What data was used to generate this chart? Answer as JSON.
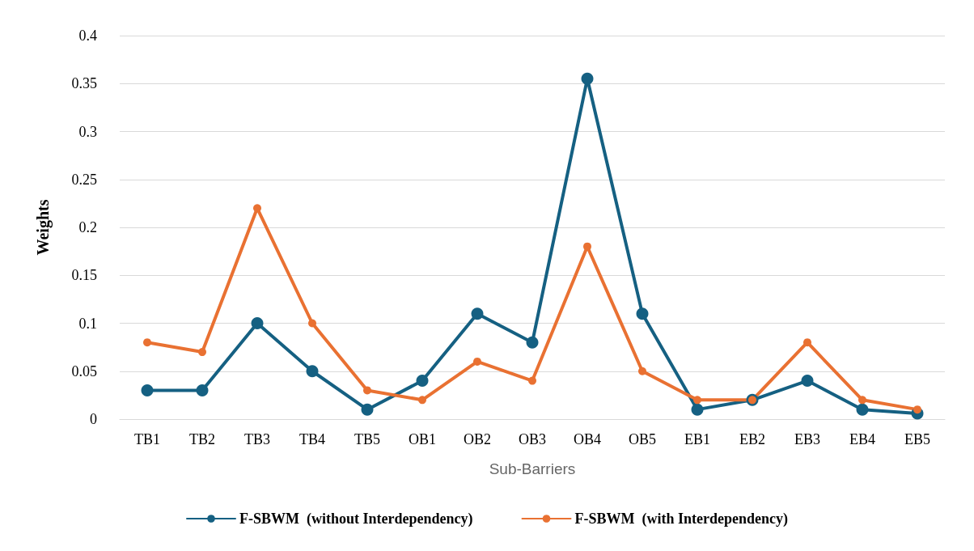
{
  "chart_data": {
    "type": "line",
    "xlabel": "Sub-Barriers",
    "ylabel": "Weights",
    "categories": [
      "TB1",
      "TB2",
      "TB3",
      "TB4",
      "TB5",
      "OB1",
      "OB2",
      "OB3",
      "OB4",
      "OB5",
      "EB1",
      "EB2",
      "EB3",
      "EB4",
      "EB5"
    ],
    "series": [
      {
        "name": "F-SBWM  (without Interdependency)",
        "color": "#156082",
        "values": [
          0.03,
          0.03,
          0.1,
          0.05,
          0.01,
          0.04,
          0.11,
          0.08,
          0.355,
          0.11,
          0.01,
          0.02,
          0.04,
          0.01,
          0.006
        ]
      },
      {
        "name": "F-SBWM  (with Interdependency)",
        "color": "#e97132",
        "values": [
          0.08,
          0.07,
          0.22,
          0.1,
          0.03,
          0.02,
          0.06,
          0.04,
          0.18,
          0.05,
          0.02,
          0.02,
          0.08,
          0.02,
          0.01
        ]
      }
    ],
    "ylim": [
      0,
      0.4
    ],
    "yticks": [
      0,
      0.05,
      0.1,
      0.15,
      0.2,
      0.25,
      0.3,
      0.35,
      0.4
    ],
    "grid": "y",
    "legend": "bottom",
    "marker": "circle",
    "line_style": "solid"
  }
}
